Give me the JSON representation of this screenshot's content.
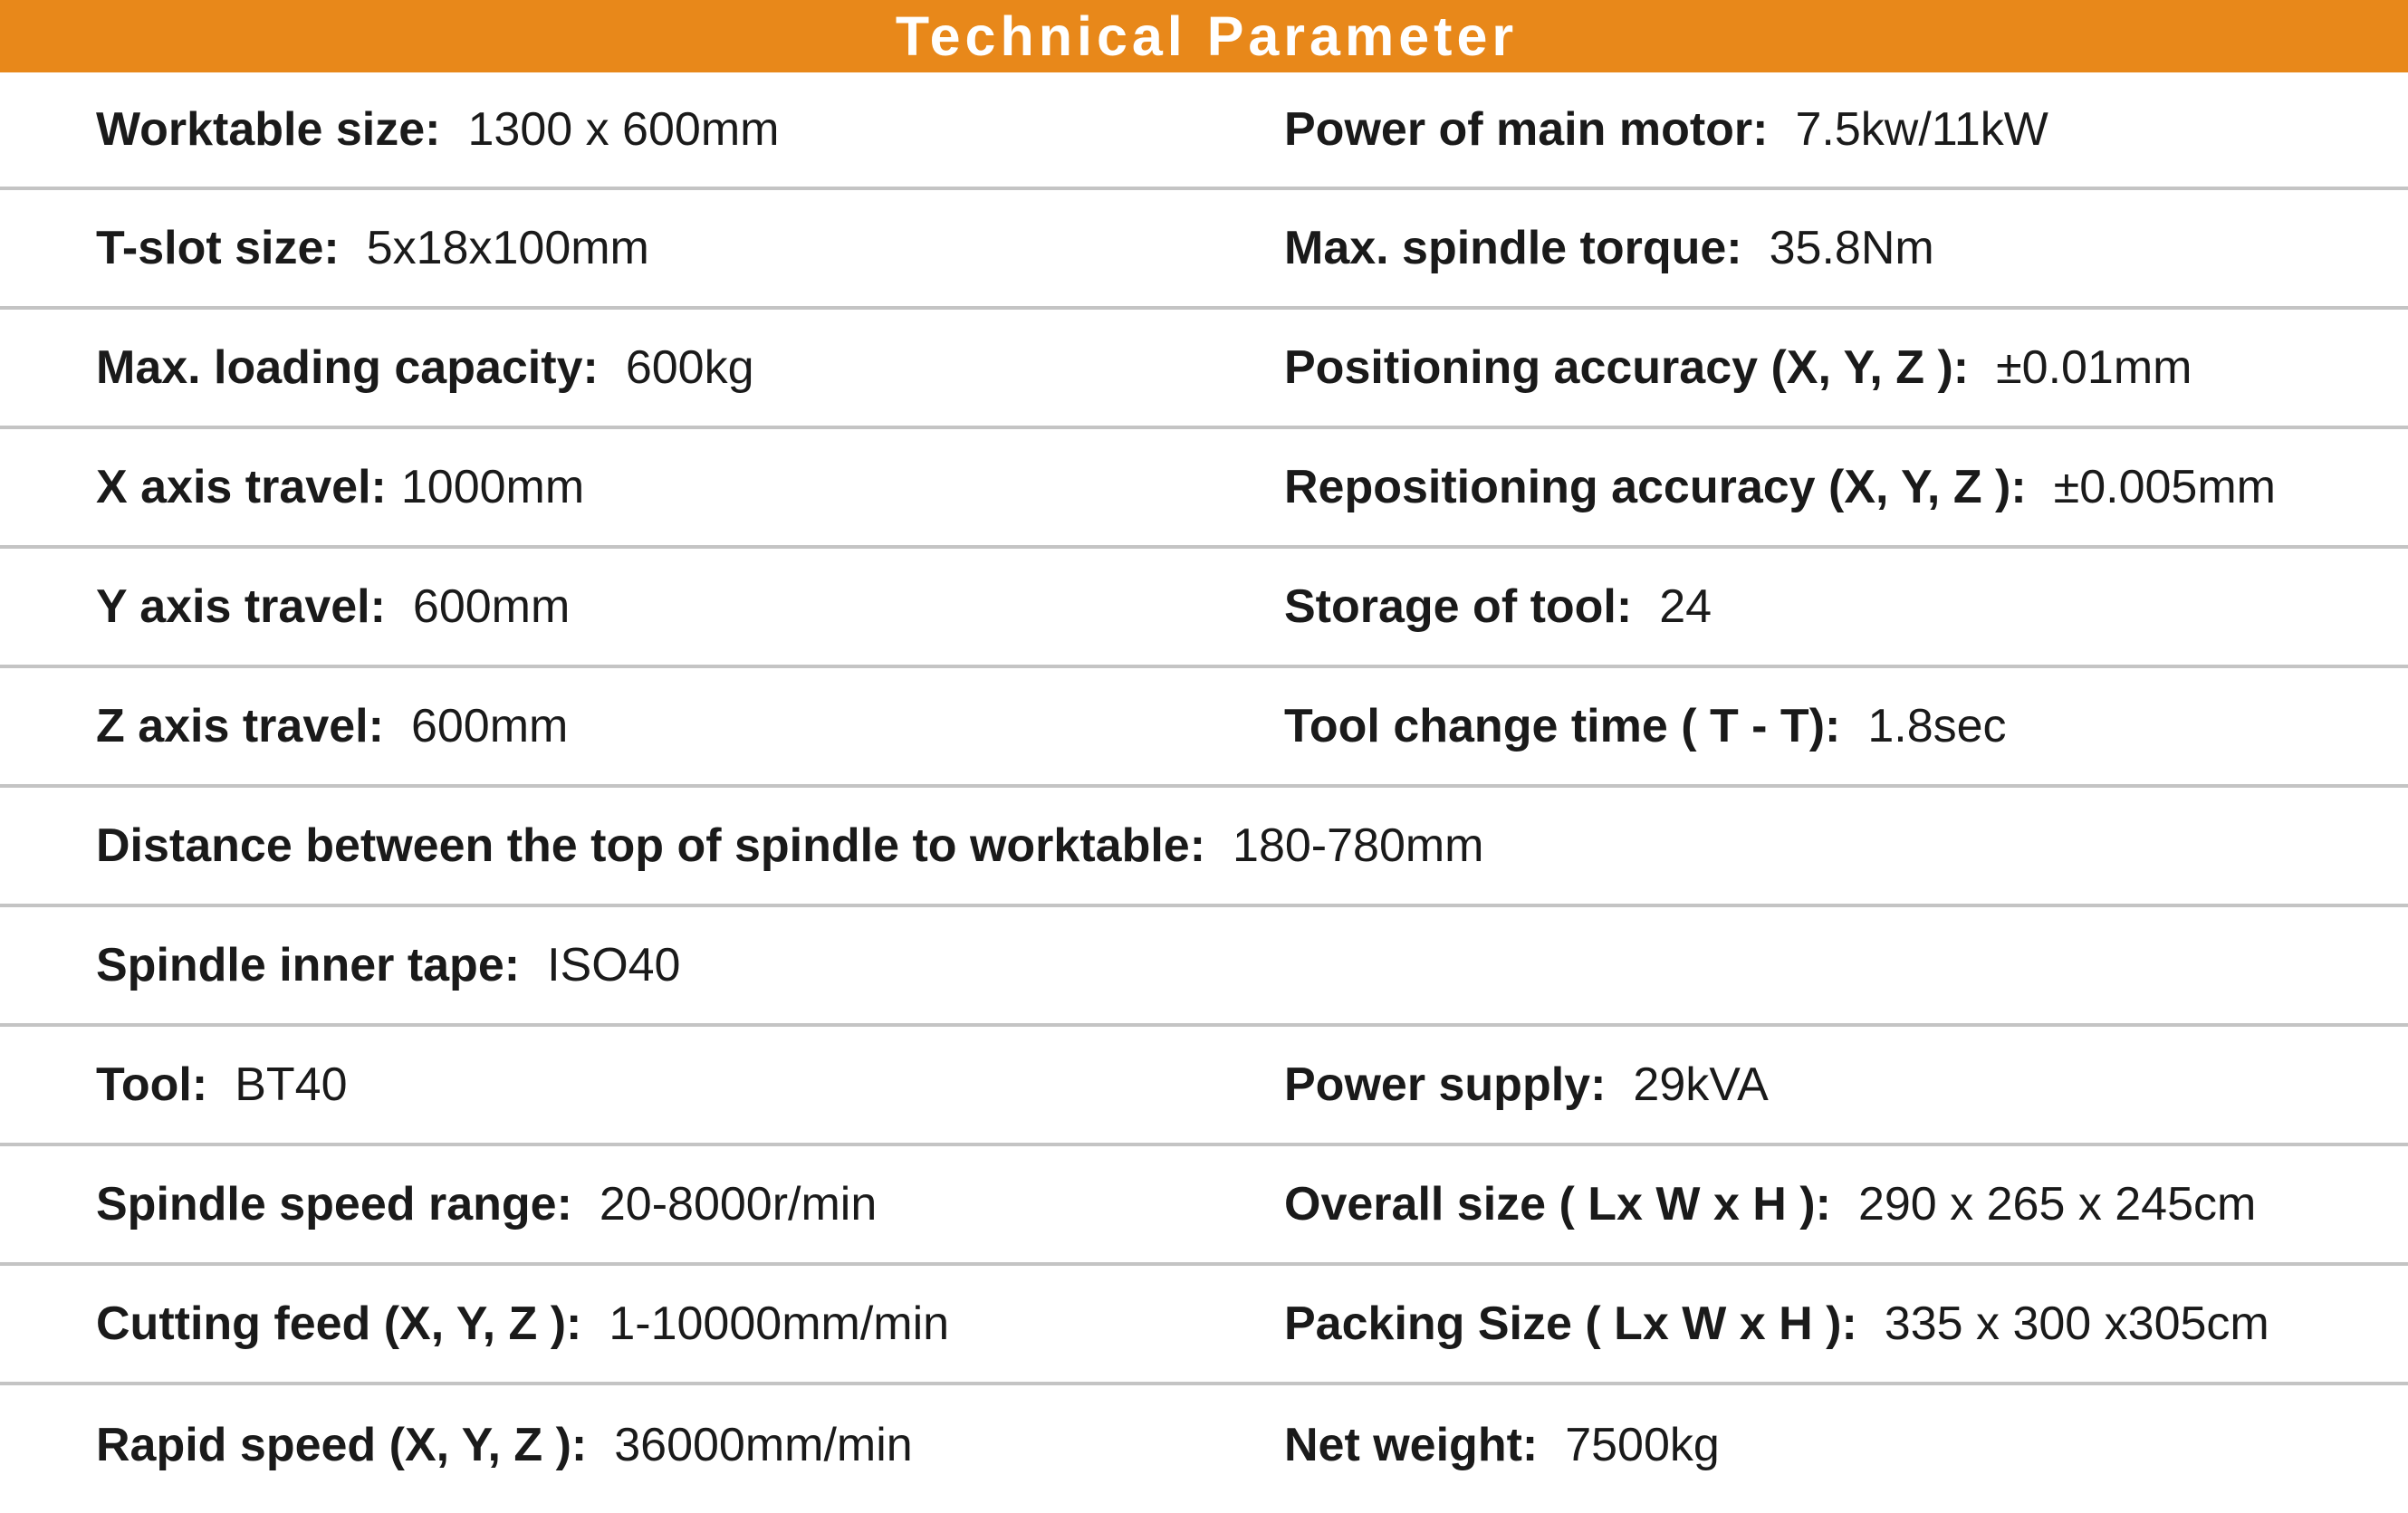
{
  "header": {
    "title": "Technical Parameter"
  },
  "colors": {
    "header_bg": "#e8881a",
    "header_text": "#ffffff",
    "divider": "#c4c4c4",
    "text": "#1a1a1a"
  },
  "rows": [
    {
      "left": {
        "label": "Worktable size:",
        "value": "1300 x 600mm"
      },
      "right": {
        "label": "Power of main motor:",
        "value": "7.5kw/11kW"
      }
    },
    {
      "left": {
        "label": "T-slot size:",
        "value": "5x18x100mm"
      },
      "right": {
        "label": "Max. spindle torque:",
        "value": "35.8Nm"
      }
    },
    {
      "left": {
        "label": "Max. loading capacity:",
        "value": "600kg"
      },
      "right": {
        "label": "Positioning accuracy (X, Y, Z ):",
        "value": "±0.01mm"
      }
    },
    {
      "left": {
        "label": "X axis travel:",
        "value": "1000mm"
      },
      "right": {
        "label": "Repositioning accuracy (X, Y, Z ):",
        "value": "±0.005mm"
      }
    },
    {
      "left": {
        "label": "Y axis travel:",
        "value": "600mm"
      },
      "right": {
        "label": "Storage of tool:",
        "value": "24"
      }
    },
    {
      "left": {
        "label": "Z axis travel:",
        "value": "600mm"
      },
      "right": {
        "label": "Tool change time ( T - T):",
        "value": "1.8sec"
      }
    },
    {
      "left": {
        "label": "Distance between the top of spindle to worktable:",
        "value": "180-780mm"
      }
    },
    {
      "left": {
        "label": "Spindle inner tape:",
        "value": "ISO40"
      }
    },
    {
      "left": {
        "label": "Tool:",
        "value": "BT40"
      },
      "right": {
        "label": "Power supply:",
        "value": "29kVA"
      }
    },
    {
      "left": {
        "label": "Spindle speed range:",
        "value": "20-8000r/min"
      },
      "right": {
        "label": "Overall size ( Lx W x H ):",
        "value": "290 x 265 x 245cm"
      }
    },
    {
      "left": {
        "label": "Cutting feed (X, Y, Z ):",
        "value": "1-10000mm/min"
      },
      "right": {
        "label": "Packing Size ( Lx W x H ):",
        "value": "335 x 300 x305cm"
      }
    },
    {
      "left": {
        "label": "Rapid speed (X, Y, Z ):",
        "value": "36000mm/min"
      },
      "right": {
        "label": "Net weight:",
        "value": "7500kg"
      }
    }
  ]
}
